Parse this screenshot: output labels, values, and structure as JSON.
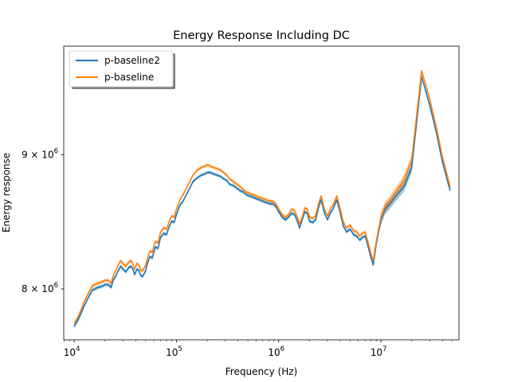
{
  "chart_data": {
    "type": "line",
    "title": "Energy Response Including DC",
    "xlabel": "Frequency (Hz)",
    "ylabel": "Energy response",
    "x_scale": "log",
    "y_scale": "log",
    "xlim": [
      7900,
      58000000
    ],
    "ylim": [
      7650000,
      9900000
    ],
    "x_major_ticks": [
      {
        "value": 10000,
        "mant": "10",
        "exp": "4"
      },
      {
        "value": 100000,
        "mant": "10",
        "exp": "5"
      },
      {
        "value": 1000000,
        "mant": "10",
        "exp": "6"
      },
      {
        "value": 10000000,
        "mant": "10",
        "exp": "7"
      }
    ],
    "y_ticks": [
      {
        "value": 8000000,
        "mant": "8",
        "times": "×",
        "base": "10",
        "exp": "6"
      },
      {
        "value": 9000000,
        "mant": "9",
        "times": "×",
        "base": "10",
        "exp": "6"
      }
    ],
    "grid": false,
    "legend_placement": "upper-left",
    "series": [
      {
        "name": "p-baseline2",
        "color": "#1f77b4",
        "band_width": 12000,
        "x": [
          10000,
          11000,
          12500,
          14000,
          15000,
          17000,
          19000,
          20000,
          21500,
          23000,
          24000,
          25500,
          27000,
          28500,
          30000,
          32000,
          34000,
          36000,
          37500,
          39000,
          41000,
          43000,
          45000,
          47000,
          50000,
          52000,
          55000,
          58000,
          62000,
          66000,
          70000,
          75000,
          80000,
          85000,
          90000,
          95000,
          100000,
          108000,
          116000,
          125000,
          135000,
          145000,
          160000,
          175000,
          190000,
          200000,
          215000,
          230000,
          250000,
          270000,
          290000,
          310000,
          330000,
          360000,
          390000,
          420000,
          450000,
          480000,
          520000,
          560000,
          600000,
          650000,
          700000,
          760000,
          820000,
          880000,
          940000,
          1000000,
          1080000,
          1160000,
          1250000,
          1340000,
          1430000,
          1520000,
          1600000,
          1700000,
          1800000,
          1900000,
          2000000,
          2150000,
          2300000,
          2450000,
          2600000,
          2800000,
          3000000,
          3200000,
          3400000,
          3700000,
          4000000,
          4300000,
          4600000,
          5000000,
          5400000,
          5800000,
          6200000,
          6600000,
          7000000,
          7500000,
          8000000,
          8400000,
          9000000,
          10000000,
          11000000,
          12500000,
          14000000,
          15500000,
          17000000,
          20000000,
          25000000,
          30000000,
          35000000,
          40000000,
          47500000
        ],
        "y": [
          7740000,
          7790000,
          7880000,
          7950000,
          7990000,
          8010000,
          8020000,
          8030000,
          8030000,
          8010000,
          8060000,
          8090000,
          8130000,
          8160000,
          8140000,
          8120000,
          8150000,
          8160000,
          8140000,
          8100000,
          8140000,
          8130000,
          8090000,
          8090000,
          8130000,
          8180000,
          8230000,
          8220000,
          8300000,
          8290000,
          8370000,
          8400000,
          8390000,
          8450000,
          8490000,
          8480000,
          8540000,
          8610000,
          8640000,
          8690000,
          8740000,
          8790000,
          8820000,
          8840000,
          8850000,
          8860000,
          8860000,
          8850000,
          8840000,
          8830000,
          8810000,
          8800000,
          8770000,
          8760000,
          8740000,
          8720000,
          8710000,
          8690000,
          8680000,
          8670000,
          8660000,
          8650000,
          8640000,
          8630000,
          8620000,
          8620000,
          8600000,
          8560000,
          8520000,
          8500000,
          8520000,
          8550000,
          8540000,
          8490000,
          8440000,
          8500000,
          8560000,
          8550000,
          8490000,
          8480000,
          8500000,
          8590000,
          8650000,
          8550000,
          8500000,
          8550000,
          8580000,
          8650000,
          8550000,
          8450000,
          8410000,
          8430000,
          8390000,
          8380000,
          8350000,
          8370000,
          8380000,
          8300000,
          8220000,
          8170000,
          8320000,
          8500000,
          8580000,
          8630000,
          8680000,
          8720000,
          8760000,
          8900000,
          9640000,
          9400000,
          9170000,
          8940000,
          8720000
        ]
      },
      {
        "name": "p-baseline",
        "color": "#ff7f0e",
        "band_width": 12000,
        "x": [
          10000,
          11000,
          12500,
          14000,
          15000,
          17000,
          19000,
          20000,
          21500,
          23000,
          24000,
          25500,
          27000,
          28500,
          30000,
          32000,
          34000,
          36000,
          37500,
          39000,
          41000,
          43000,
          45000,
          47000,
          50000,
          52000,
          55000,
          58000,
          62000,
          66000,
          70000,
          75000,
          80000,
          85000,
          90000,
          95000,
          100000,
          108000,
          116000,
          125000,
          135000,
          145000,
          160000,
          175000,
          190000,
          200000,
          215000,
          230000,
          250000,
          270000,
          290000,
          310000,
          330000,
          360000,
          390000,
          420000,
          450000,
          480000,
          520000,
          560000,
          600000,
          650000,
          700000,
          760000,
          820000,
          880000,
          940000,
          1000000,
          1080000,
          1160000,
          1250000,
          1340000,
          1430000,
          1520000,
          1600000,
          1700000,
          1800000,
          1900000,
          2000000,
          2150000,
          2300000,
          2450000,
          2600000,
          2800000,
          3000000,
          3200000,
          3400000,
          3700000,
          4000000,
          4300000,
          4600000,
          5000000,
          5400000,
          5800000,
          6200000,
          6600000,
          7000000,
          7500000,
          8000000,
          8400000,
          9000000,
          10000000,
          11000000,
          12500000,
          14000000,
          15500000,
          17000000,
          20000000,
          25000000,
          30000000,
          35000000,
          40000000,
          47500000
        ],
        "y": [
          7760000,
          7810000,
          7910000,
          7980000,
          8020000,
          8040000,
          8050000,
          8060000,
          8060000,
          8040000,
          8090000,
          8130000,
          8170000,
          8200000,
          8180000,
          8160000,
          8190000,
          8200000,
          8180000,
          8140000,
          8180000,
          8170000,
          8130000,
          8130000,
          8170000,
          8220000,
          8270000,
          8260000,
          8340000,
          8330000,
          8410000,
          8440000,
          8430000,
          8490000,
          8530000,
          8520000,
          8580000,
          8650000,
          8690000,
          8740000,
          8790000,
          8840000,
          8880000,
          8900000,
          8910000,
          8920000,
          8910000,
          8900000,
          8890000,
          8880000,
          8860000,
          8840000,
          8810000,
          8790000,
          8770000,
          8750000,
          8730000,
          8710000,
          8700000,
          8690000,
          8680000,
          8670000,
          8660000,
          8650000,
          8640000,
          8640000,
          8620000,
          8580000,
          8540000,
          8520000,
          8540000,
          8580000,
          8570000,
          8520000,
          8470000,
          8520000,
          8590000,
          8580000,
          8520000,
          8510000,
          8530000,
          8620000,
          8680000,
          8580000,
          8530000,
          8580000,
          8610000,
          8680000,
          8580000,
          8480000,
          8440000,
          8460000,
          8420000,
          8410000,
          8380000,
          8400000,
          8410000,
          8330000,
          8250000,
          8200000,
          8340000,
          8520000,
          8600000,
          8650000,
          8710000,
          8760000,
          8810000,
          8960000,
          9690000,
          9450000,
          9210000,
          8980000,
          8750000
        ]
      }
    ]
  }
}
